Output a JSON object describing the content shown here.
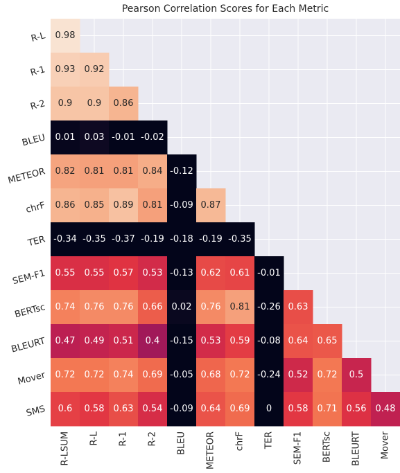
{
  "chart_data": {
    "type": "heatmap",
    "title": "Pearson Correlation Scores for Each Metric",
    "x_categories": [
      "R-LSUM",
      "R-L",
      "R-1",
      "R-2",
      "BLEU",
      "METEOR",
      "chrF",
      "TER",
      "SEM-F1",
      "BERTsc",
      "BLEURT",
      "Mover"
    ],
    "y_categories": [
      "R-L",
      "R-1",
      "R-2",
      "BLEU",
      "METEOR",
      "chrF",
      "TER",
      "SEM-F1",
      "BERTsc",
      "BLEURT",
      "Mover",
      "SMS"
    ],
    "values": [
      [
        0.98
      ],
      [
        0.93,
        0.92
      ],
      [
        0.9,
        0.9,
        0.86
      ],
      [
        0.01,
        0.03,
        -0.01,
        -0.02
      ],
      [
        0.82,
        0.81,
        0.81,
        0.84,
        -0.12
      ],
      [
        0.86,
        0.85,
        0.89,
        0.81,
        -0.09,
        0.87
      ],
      [
        -0.34,
        -0.35,
        -0.37,
        -0.19,
        -0.18,
        -0.19,
        -0.35
      ],
      [
        0.55,
        0.55,
        0.57,
        0.53,
        -0.13,
        0.62,
        0.61,
        -0.01
      ],
      [
        0.74,
        0.76,
        0.76,
        0.66,
        0.02,
        0.76,
        0.81,
        -0.26,
        0.63
      ],
      [
        0.47,
        0.49,
        0.51,
        0.4,
        -0.15,
        0.53,
        0.59,
        -0.08,
        0.64,
        0.65
      ],
      [
        0.72,
        0.72,
        0.74,
        0.69,
        -0.05,
        0.68,
        0.72,
        -0.24,
        0.52,
        0.72,
        0.5
      ],
      [
        0.6,
        0.58,
        0.63,
        0.54,
        -0.09,
        0.64,
        0.69,
        0,
        0.58,
        0.71,
        0.56,
        0.48
      ]
    ],
    "colormap": [
      "#03051a",
      "#35193e",
      "#701f57",
      "#ad1759",
      "#e13342",
      "#f37651",
      "#f6b48f",
      "#faebdd"
    ],
    "vmin": 0,
    "vmax": 1,
    "grid": true,
    "background": "#eaeaf2"
  }
}
